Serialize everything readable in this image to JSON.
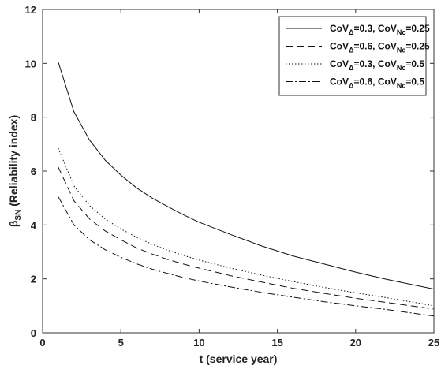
{
  "chart_data": {
    "type": "line",
    "xlabel": "t (service year)",
    "ylabel_main": "β",
    "ylabel_sub": "SN",
    "ylabel_rest": " (Reliability index)",
    "xlim": [
      0,
      25
    ],
    "ylim": [
      0,
      12
    ],
    "xticks": [
      "0",
      "5",
      "10",
      "15",
      "20",
      "25"
    ],
    "yticks": [
      "0",
      "2",
      "4",
      "6",
      "8",
      "10",
      "12"
    ],
    "grid": false,
    "legend_position": "top-right",
    "x": [
      1,
      2,
      3,
      4,
      5,
      6,
      7,
      8,
      9,
      10,
      12,
      14,
      16,
      18,
      20,
      22,
      25
    ],
    "series": [
      {
        "style": "solid",
        "legend": {
          "a": "CoV",
          "a_sub": "Δ",
          "b": "=0.3, CoV",
          "b_sub": "Nc",
          "c": "=0.25"
        },
        "values": [
          10.05,
          8.2,
          7.15,
          6.4,
          5.85,
          5.38,
          5.0,
          4.68,
          4.38,
          4.1,
          3.65,
          3.22,
          2.85,
          2.55,
          2.25,
          1.98,
          1.62
        ]
      },
      {
        "style": "dashed",
        "legend": {
          "a": "CoV",
          "a_sub": "Δ",
          "b": "=0.6, CoV",
          "b_sub": "Nc",
          "c": "=0.25"
        },
        "values": [
          6.15,
          4.9,
          4.22,
          3.78,
          3.45,
          3.15,
          2.92,
          2.72,
          2.55,
          2.4,
          2.12,
          1.88,
          1.65,
          1.46,
          1.28,
          1.12,
          0.88
        ]
      },
      {
        "style": "dotted",
        "legend": {
          "a": "CoV",
          "a_sub": "Δ",
          "b": "=0.3, CoV",
          "b_sub": "Nc",
          "c": "=0.5"
        },
        "values": [
          6.85,
          5.45,
          4.72,
          4.22,
          3.85,
          3.55,
          3.28,
          3.06,
          2.87,
          2.7,
          2.4,
          2.14,
          1.9,
          1.68,
          1.48,
          1.3,
          1.0
        ]
      },
      {
        "style": "dashdot",
        "legend": {
          "a": "CoV",
          "a_sub": "Δ",
          "b": "=0.6, CoV",
          "b_sub": "Nc",
          "c": "=0.5"
        },
        "values": [
          5.05,
          4.0,
          3.45,
          3.08,
          2.8,
          2.56,
          2.36,
          2.2,
          2.05,
          1.92,
          1.7,
          1.5,
          1.32,
          1.15,
          1.0,
          0.86,
          0.62
        ]
      }
    ]
  }
}
